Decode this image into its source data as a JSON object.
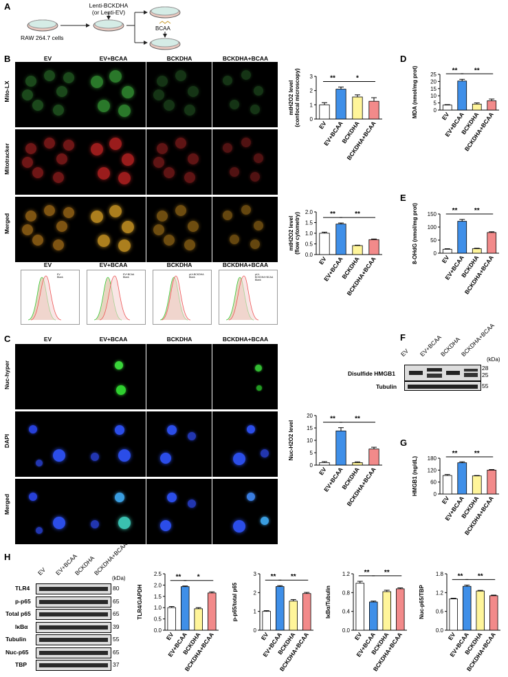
{
  "panel_letters": {
    "A": "A",
    "B": "B",
    "C": "C",
    "D": "D",
    "E": "E",
    "F": "F",
    "G": "G",
    "H": "H"
  },
  "schematic": {
    "vector": "Lenti-BCKDHA",
    "vector_alt": "(or Lenti-EV)",
    "cells": "RAW 264.7 cells",
    "treatment": "BCAA"
  },
  "groups": [
    "EV",
    "EV+BCAA",
    "BCKDHA",
    "BCKDHA+BCAA"
  ],
  "colors": {
    "EV": "#ffffff",
    "EV+BCAA": "#3f8fe8",
    "BCKDHA": "#fff59a",
    "BCKDHA+BCAA": "#f28a8a"
  },
  "panelB": {
    "row_labels": [
      "Mito-LX",
      "Mitotracker",
      "Merged"
    ],
    "hist_legend": [
      "EV",
      "Blank",
      "EV+BCAA",
      "Blank",
      "pLV-BCKDHA",
      "Blank",
      "pLV-BCKDHA+BCAA",
      "Blank"
    ]
  },
  "panelC": {
    "row_labels": [
      "Nuc-hyper",
      "DAPI",
      "Merged"
    ]
  },
  "panelF": {
    "rows": [
      "Disulfide HMGB1",
      "Tubulin"
    ],
    "kda_label": "(kDa)",
    "kda": [
      "28",
      "25",
      "55"
    ]
  },
  "panelH": {
    "rows": [
      "TLR4",
      "p-p65",
      "Total p65",
      "IκBα",
      "Tubulin",
      "Nuc-p65",
      "TBP"
    ],
    "kda_label": "(kDa)",
    "kda": [
      "80",
      "65",
      "65",
      "39",
      "55",
      "65",
      "37"
    ]
  },
  "chart_data": [
    {
      "id": "B1",
      "type": "bar",
      "ylabel": [
        "mtH2O2 level",
        "(confocal microscopy)"
      ],
      "ylim": [
        0,
        3
      ],
      "ticks": [
        0,
        1,
        2,
        3
      ],
      "categories": [
        "EV",
        "EV+BCAA",
        "BCKDHA",
        "BCKDHA+BCAA"
      ],
      "values": [
        1.0,
        2.1,
        1.55,
        1.25
      ],
      "errors": [
        0.15,
        0.15,
        0.15,
        0.25
      ],
      "sig": [
        {
          "from": 0,
          "to": 1,
          "label": "**"
        },
        {
          "from": 1,
          "to": 3,
          "label": "*"
        }
      ]
    },
    {
      "id": "B2",
      "type": "bar",
      "ylabel": [
        "mtH2O2 level",
        "(flow cytometry)"
      ],
      "ylim": [
        0,
        2.0
      ],
      "ticks": [
        0,
        0.5,
        1.0,
        1.5,
        2.0
      ],
      "categories": [
        "EV",
        "EV+BCAA",
        "BCKDHA",
        "BCKDHA+BCAA"
      ],
      "values": [
        1.0,
        1.43,
        0.42,
        0.7
      ],
      "errors": [
        0.05,
        0.05,
        0.02,
        0.03
      ],
      "sig": [
        {
          "from": 0,
          "to": 1,
          "label": "**"
        },
        {
          "from": 1,
          "to": 3,
          "label": "**"
        }
      ]
    },
    {
      "id": "D",
      "type": "bar",
      "ylabel": [
        "MDA (nmol/mg prot)"
      ],
      "ylim": [
        0,
        25
      ],
      "ticks": [
        0,
        5,
        10,
        15,
        20,
        25
      ],
      "categories": [
        "EV",
        "EV+BCAA",
        "BCKDHA",
        "BCKDHA+BCAA"
      ],
      "values": [
        3.5,
        20.3,
        4.2,
        6.5
      ],
      "errors": [
        0.3,
        1.2,
        0.8,
        1.2
      ],
      "sig": [
        {
          "from": 0,
          "to": 1,
          "label": "**"
        },
        {
          "from": 1,
          "to": 3,
          "label": "**"
        }
      ]
    },
    {
      "id": "E",
      "type": "bar",
      "ylabel": [
        "8-OHdG (nmol/mg prot)"
      ],
      "ylim": [
        0,
        150
      ],
      "ticks": [
        0,
        50,
        100,
        150
      ],
      "categories": [
        "EV",
        "EV+BCAA",
        "BCKDHA",
        "BCKDHA+BCAA"
      ],
      "values": [
        15,
        122,
        17,
        79
      ],
      "errors": [
        2,
        7,
        2,
        3
      ],
      "sig": [
        {
          "from": 0,
          "to": 1,
          "label": "**"
        },
        {
          "from": 1,
          "to": 3,
          "label": "**"
        }
      ]
    },
    {
      "id": "C",
      "type": "bar",
      "ylabel": [
        "Nuc-H2O2 level"
      ],
      "ylim": [
        0,
        20
      ],
      "ticks": [
        0,
        5,
        10,
        15,
        20
      ],
      "categories": [
        "EV",
        "EV+BCAA",
        "BCKDHA",
        "BCKDHA+BCAA"
      ],
      "values": [
        1.0,
        13.8,
        1.0,
        6.5
      ],
      "errors": [
        0.4,
        1.3,
        0.3,
        0.7
      ],
      "sig": [
        {
          "from": 0,
          "to": 1,
          "label": "**"
        },
        {
          "from": 1,
          "to": 3,
          "label": "**"
        }
      ]
    },
    {
      "id": "G",
      "type": "bar",
      "ylabel": [
        "HMGB1 (ng/dL)"
      ],
      "ylim": [
        0,
        180
      ],
      "ticks": [
        0,
        60,
        120,
        180
      ],
      "categories": [
        "EV",
        "EV+BCAA",
        "BCKDHA",
        "BCKDHA+BCAA"
      ],
      "values": [
        93,
        157,
        91,
        120
      ],
      "errors": [
        5,
        5,
        2,
        3
      ],
      "sig": [
        {
          "from": 0,
          "to": 1,
          "label": "**"
        },
        {
          "from": 1,
          "to": 3,
          "label": "**"
        }
      ]
    },
    {
      "id": "H1",
      "type": "bar",
      "ylabel": [
        "TLR4/GAPDH"
      ],
      "ylim": [
        0,
        2.5
      ],
      "ticks": [
        0,
        0.5,
        1.0,
        1.5,
        2.0,
        2.5
      ],
      "categories": [
        "EV",
        "EV+BCAA",
        "BCKDHA",
        "BCKDHA+BCAA"
      ],
      "values": [
        1.0,
        1.93,
        0.95,
        1.65
      ],
      "errors": [
        0.05,
        0.03,
        0.05,
        0.05
      ],
      "sig": [
        {
          "from": 0,
          "to": 1,
          "label": "**"
        },
        {
          "from": 1,
          "to": 3,
          "label": "*"
        }
      ]
    },
    {
      "id": "H2",
      "type": "bar",
      "ylabel": [
        "p-p65/total p65"
      ],
      "ylim": [
        0,
        3
      ],
      "ticks": [
        0,
        1,
        2,
        3
      ],
      "categories": [
        "EV",
        "EV+BCAA",
        "BCKDHA",
        "BCKDHA+BCAA"
      ],
      "values": [
        1.0,
        2.32,
        1.55,
        1.95
      ],
      "errors": [
        0.04,
        0.05,
        0.08,
        0.06
      ],
      "sig": [
        {
          "from": 0,
          "to": 1,
          "label": "**"
        },
        {
          "from": 1,
          "to": 3,
          "label": "**"
        }
      ]
    },
    {
      "id": "H3",
      "type": "bar",
      "ylabel": [
        "IκBα/Tubulin"
      ],
      "ylim": [
        0,
        1.2
      ],
      "ticks": [
        0,
        0.4,
        0.8,
        1.2
      ],
      "categories": [
        "EV",
        "EV+BCAA",
        "BCKDHA",
        "BCKDHA+BCAA"
      ],
      "values": [
        1.0,
        0.6,
        0.82,
        0.88
      ],
      "errors": [
        0.04,
        0.02,
        0.03,
        0.02
      ],
      "sig": [
        {
          "from": 0,
          "to": 1,
          "label": "**"
        },
        {
          "from": 1,
          "to": 3,
          "label": "**"
        }
      ]
    },
    {
      "id": "H4",
      "type": "bar",
      "ylabel": [
        "Nuc-p65/TBP"
      ],
      "ylim": [
        0,
        1.8
      ],
      "ticks": [
        0,
        0.6,
        1.2,
        1.8
      ],
      "categories": [
        "EV",
        "EV+BCAA",
        "BCKDHA",
        "BCKDHA+BCAA"
      ],
      "values": [
        1.0,
        1.4,
        1.25,
        1.1
      ],
      "errors": [
        0.02,
        0.04,
        0.02,
        0.02
      ],
      "sig": [
        {
          "from": 0,
          "to": 1,
          "label": "**"
        },
        {
          "from": 1,
          "to": 3,
          "label": "**"
        }
      ]
    }
  ]
}
